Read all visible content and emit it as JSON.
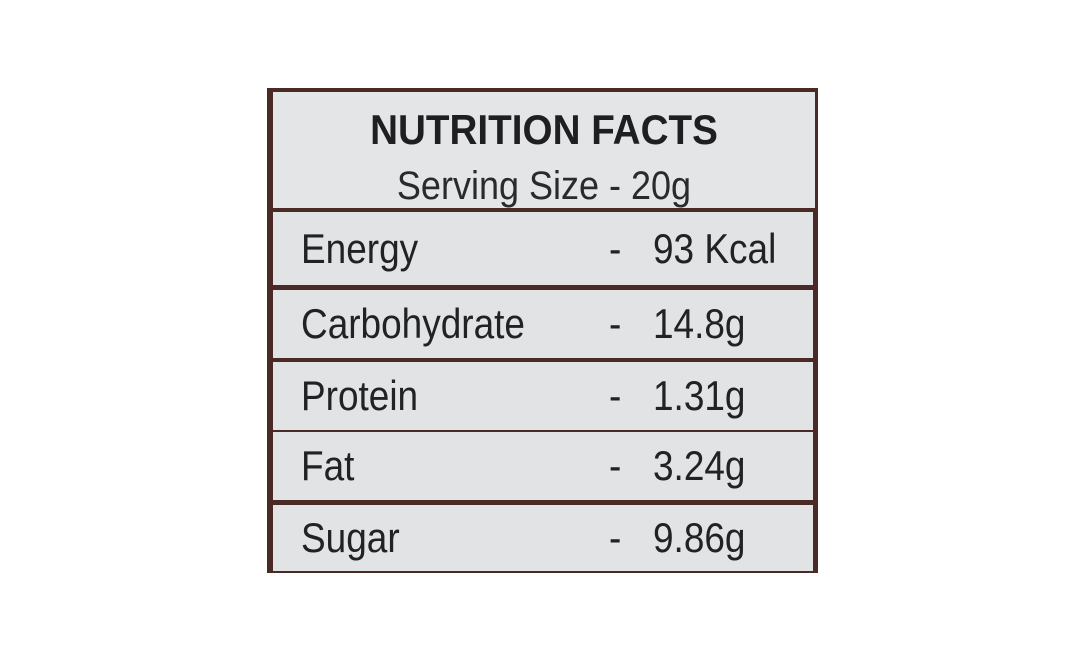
{
  "header": {
    "title": "NUTRITION FACTS",
    "serving": "Serving Size - 20g"
  },
  "table": {
    "rows": [
      [
        "Energy",
        "-",
        "93 Kcal"
      ],
      [
        "Carbohydrate",
        "-",
        "14.8g"
      ],
      [
        "Protein",
        "-",
        "1.31g"
      ],
      [
        "Fat",
        "-",
        "3.24g"
      ],
      [
        "Sugar",
        "-",
        "9.86g"
      ]
    ]
  }
}
